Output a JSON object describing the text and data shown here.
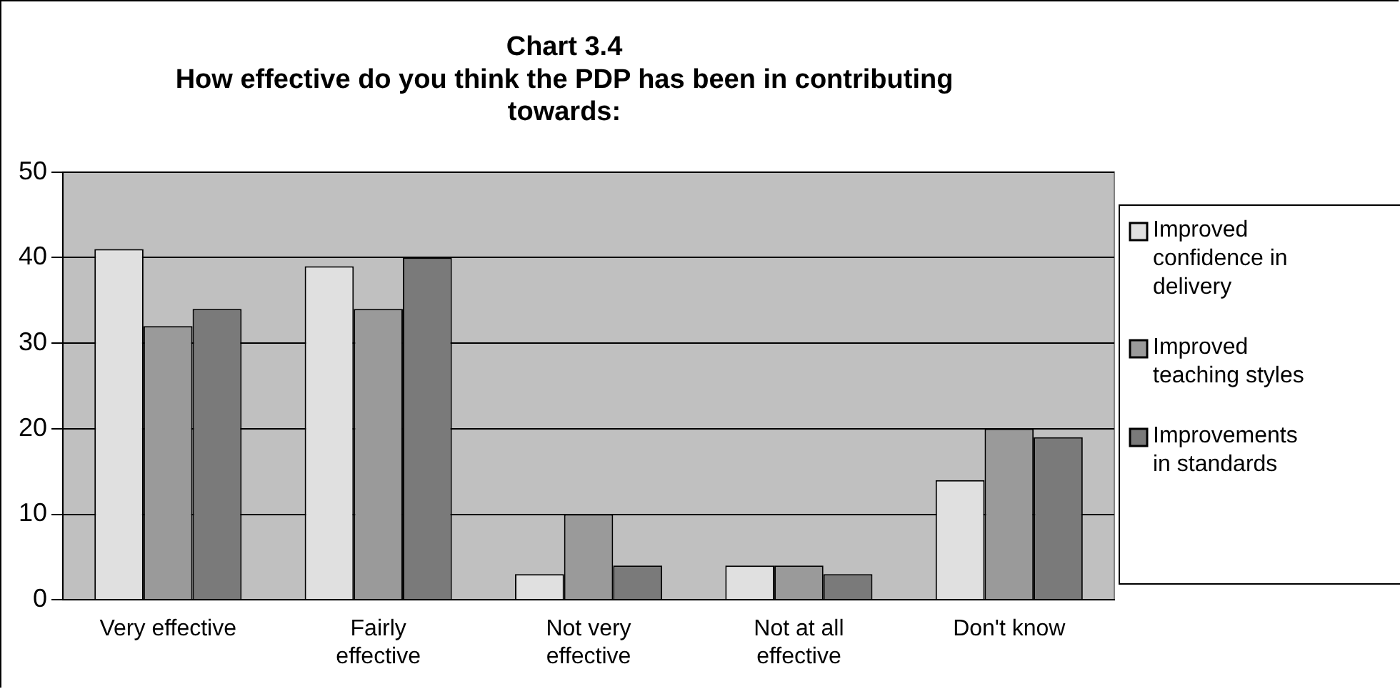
{
  "chart_data": {
    "type": "bar",
    "title": "Chart 3.4",
    "subtitle": "How effective do you think the PDP has been in contributing towards:",
    "categories": [
      "Very effective",
      "Fairly effective",
      "Not very effective",
      "Not at all effective",
      "Don't know"
    ],
    "series": [
      {
        "name": "Improved confidence in delivery",
        "color": "#e0e0e0",
        "values": [
          41,
          39,
          3,
          4,
          14
        ]
      },
      {
        "name": "Improved teaching styles",
        "color": "#9a9a9a",
        "values": [
          32,
          34,
          10,
          4,
          20
        ]
      },
      {
        "name": "Improvements in standards",
        "color": "#7a7a7a",
        "values": [
          34,
          40,
          4,
          3,
          19
        ]
      }
    ],
    "ylim": [
      0,
      50
    ],
    "yticks": [
      0,
      10,
      20,
      30,
      40,
      50
    ],
    "grid": "y",
    "legend": "right"
  }
}
